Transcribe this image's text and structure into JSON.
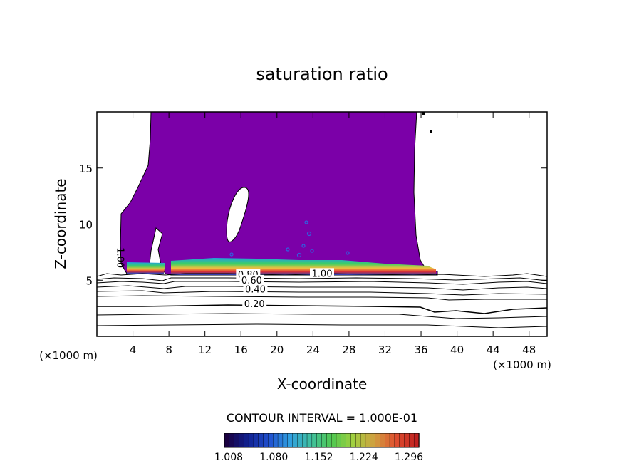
{
  "chart_data": {
    "type": "heatmap",
    "title": "saturation ratio",
    "xlabel": "X-coordinate",
    "ylabel": "Z-coordinate",
    "x_unit_label": "(×1000 m)",
    "x_unit_label_right": "(×1000 m)",
    "xlim": [
      0,
      50
    ],
    "ylim": [
      0,
      20
    ],
    "x_ticks": [
      4,
      8,
      12,
      16,
      20,
      24,
      28,
      32,
      36,
      40,
      44,
      48
    ],
    "y_ticks": [
      5,
      10,
      15
    ],
    "cloud_region_color": "#7b00a8",
    "contour_labels": [
      {
        "text": "1.00",
        "x": 2.5,
        "z": 7.0
      },
      {
        "text": "1.00",
        "x": 25.0,
        "z": 5.5
      },
      {
        "text": "0.80",
        "x": 16.8,
        "z": 5.4
      },
      {
        "text": "0.60",
        "x": 17.2,
        "z": 4.9
      },
      {
        "text": "0.40",
        "x": 17.6,
        "z": 4.1
      },
      {
        "text": "0.20",
        "x": 17.5,
        "z": 2.8
      }
    ],
    "contour_interval_text": "CONTOUR INTERVAL = 1.000E-01",
    "colorbar": {
      "tick_labels": [
        "1.008",
        "1.080",
        "1.152",
        "1.224",
        "1.296"
      ],
      "colors": [
        "#1a0040",
        "#102090",
        "#2050d0",
        "#30a0e0",
        "#40c0a0",
        "#50c850",
        "#a0d040",
        "#d0a040",
        "#e05030",
        "#c02020"
      ]
    }
  }
}
